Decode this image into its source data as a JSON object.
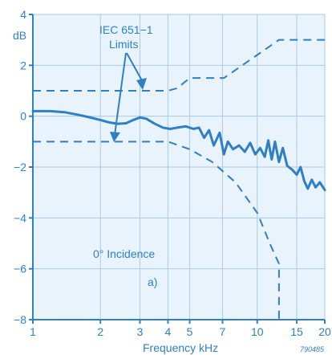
{
  "chart_data": {
    "type": "line",
    "title": "",
    "xlabel": "Frequency kHz",
    "ylabel": "dB",
    "x_scale": "log",
    "xlim": [
      1,
      20
    ],
    "ylim": [
      -8,
      4
    ],
    "x_ticks": [
      {
        "value": 1,
        "label": "1"
      },
      {
        "value": 2,
        "label": "2"
      },
      {
        "value": 3,
        "label": "3"
      },
      {
        "value": 4,
        "label": "4"
      },
      {
        "value": 5,
        "label": "5"
      },
      {
        "value": 7,
        "label": "7"
      },
      {
        "value": 10,
        "label": "10"
      },
      {
        "value": 15,
        "label": "15"
      },
      {
        "value": 20,
        "label": "20"
      }
    ],
    "y_ticks": [
      {
        "value": 4,
        "label": "4"
      },
      {
        "value": 2,
        "label": "2"
      },
      {
        "value": 0,
        "label": "0"
      },
      {
        "value": -2,
        "label": "−2"
      },
      {
        "value": -4,
        "label": "−4"
      },
      {
        "value": -6,
        "label": "−6"
      },
      {
        "value": -8,
        "label": "−8"
      }
    ],
    "grid": true,
    "annotations": {
      "limits_line1": "IEC 651−1",
      "limits_line2": "Limits",
      "incidence": "0° Incidence",
      "panel": "a)",
      "catalog_number": "790485"
    },
    "series": [
      {
        "style": "solid",
        "points": [
          [
            1,
            0.2
          ],
          [
            1.2,
            0.2
          ],
          [
            1.4,
            0.15
          ],
          [
            1.6,
            0.05
          ],
          [
            1.8,
            -0.05
          ],
          [
            2.0,
            -0.15
          ],
          [
            2.2,
            -0.25
          ],
          [
            2.4,
            -0.3
          ],
          [
            2.6,
            -0.28
          ],
          [
            2.8,
            -0.15
          ],
          [
            3.0,
            -0.05
          ],
          [
            3.2,
            -0.1
          ],
          [
            3.5,
            -0.3
          ],
          [
            3.8,
            -0.45
          ],
          [
            4.1,
            -0.5
          ],
          [
            4.4,
            -0.45
          ],
          [
            4.8,
            -0.4
          ],
          [
            5.2,
            -0.5
          ],
          [
            5.5,
            -0.45
          ],
          [
            5.8,
            -0.85
          ],
          [
            6.1,
            -0.55
          ],
          [
            6.4,
            -1.15
          ],
          [
            6.8,
            -0.65
          ],
          [
            7.1,
            -1.5
          ],
          [
            7.4,
            -1.0
          ],
          [
            7.8,
            -1.3
          ],
          [
            8.3,
            -1.15
          ],
          [
            8.8,
            -1.4
          ],
          [
            9.3,
            -1.05
          ],
          [
            9.8,
            -1.5
          ],
          [
            10.3,
            -1.25
          ],
          [
            10.8,
            -1.6
          ],
          [
            11.2,
            -0.95
          ],
          [
            11.6,
            -1.7
          ],
          [
            12.0,
            -1.0
          ],
          [
            12.5,
            -1.8
          ],
          [
            13.0,
            -1.25
          ],
          [
            13.6,
            -1.95
          ],
          [
            14.3,
            -2.1
          ],
          [
            15.0,
            -2.3
          ],
          [
            15.6,
            -2.0
          ],
          [
            16.2,
            -2.55
          ],
          [
            16.8,
            -2.85
          ],
          [
            17.5,
            -2.5
          ],
          [
            18.2,
            -2.8
          ],
          [
            19.0,
            -2.6
          ],
          [
            20.0,
            -2.9
          ]
        ]
      },
      {
        "style": "dashed",
        "points": [
          [
            1,
            1.0
          ],
          [
            4.0,
            1.0
          ],
          [
            4.4,
            1.1
          ],
          [
            5.0,
            1.5
          ],
          [
            7.1,
            1.5
          ],
          [
            12.5,
            3.0
          ],
          [
            20.0,
            3.0
          ]
        ]
      },
      {
        "style": "dashed",
        "points": [
          [
            1,
            -1.0
          ],
          [
            4.0,
            -1.0
          ],
          [
            5.0,
            -1.3
          ],
          [
            6.3,
            -1.8
          ],
          [
            8.0,
            -2.6
          ],
          [
            10.0,
            -3.8
          ],
          [
            11.5,
            -5.1
          ],
          [
            12.5,
            -5.8
          ],
          [
            12.5,
            -8.0
          ]
        ]
      }
    ]
  }
}
